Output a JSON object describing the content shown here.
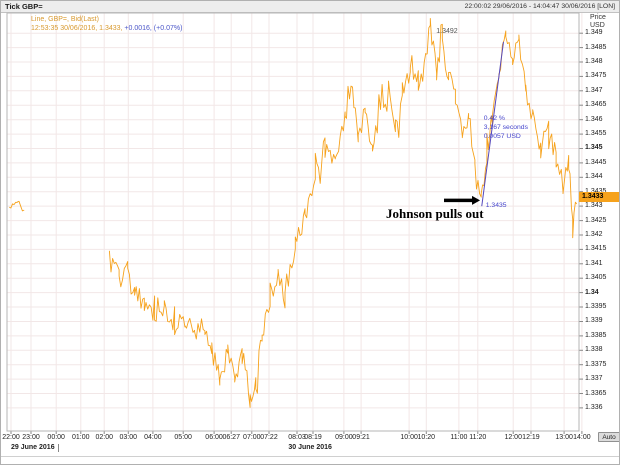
{
  "window": {
    "title": "Tick GBP=",
    "time_range": "22:00:02 29/06/2016 - 14:04:47 30/06/2016 [LON]"
  },
  "legend": {
    "line1": "Line, GBP=, Bid(Last)",
    "line2_prefix": "12:53:35 30/06/2016, 1.3433, ",
    "line2_change": "+0.0016, (+0.07%)"
  },
  "y_axis_title": {
    "line1": "Price",
    "line2": "USD"
  },
  "auto_button": "Auto",
  "chart_data": {
    "type": "line",
    "title": "Tick GBP=",
    "series_name": "GBP= Bid(Last)",
    "x_axis": {
      "ticks": [
        {
          "label": "22:00",
          "pos": 0.007
        },
        {
          "label": "23:00",
          "pos": 0.042
        },
        {
          "label": "00:00",
          "pos": 0.086
        },
        {
          "label": "01:00",
          "pos": 0.129
        },
        {
          "label": "02:00",
          "pos": 0.17
        },
        {
          "label": "03:00",
          "pos": 0.212
        },
        {
          "label": "04:00",
          "pos": 0.255
        },
        {
          "label": "05:00",
          "pos": 0.308
        },
        {
          "label": "06:00",
          "pos": 0.362
        },
        {
          "label": "06:27",
          "pos": 0.392
        },
        {
          "label": "07:00",
          "pos": 0.428
        },
        {
          "label": "07:22",
          "pos": 0.458
        },
        {
          "label": "08:03",
          "pos": 0.507
        },
        {
          "label": "08:19",
          "pos": 0.535
        },
        {
          "label": "09:00",
          "pos": 0.589
        },
        {
          "label": "09:21",
          "pos": 0.619
        },
        {
          "label": "10:00",
          "pos": 0.703
        },
        {
          "label": "10:20",
          "pos": 0.733
        },
        {
          "label": "11:00",
          "pos": 0.79
        },
        {
          "label": "11:20",
          "pos": 0.823
        },
        {
          "label": "12:00",
          "pos": 0.885
        },
        {
          "label": "12:19",
          "pos": 0.916
        },
        {
          "label": "13:00",
          "pos": 0.974
        },
        {
          "label": "14:00",
          "pos": 1.005
        }
      ],
      "date_labels": [
        {
          "label": "29 June 2016",
          "pos": 0.007,
          "align": "left"
        },
        {
          "label": "30 June 2016",
          "pos": 0.53,
          "align": "center"
        }
      ],
      "divider_pos": 0.089
    },
    "y_axis": {
      "title": "Price USD",
      "price_top": 1.3497,
      "price_bottom": 1.3352,
      "labels": [
        "1.349",
        "1.3485",
        "1.348",
        "1.3475",
        "1.347",
        "1.3465",
        "1.346",
        "1.3455",
        "1.345",
        "1.3445",
        "1.344",
        "1.3435",
        "1.343",
        "1.3425",
        "1.342",
        "1.3415",
        "1.341",
        "1.3405",
        "1.34",
        "1.3395",
        "1.339",
        "1.3385",
        "1.338",
        "1.3375",
        "1.337",
        "1.3365",
        "1.336"
      ],
      "bold_labels": [
        "1.345",
        "1.34"
      ],
      "last_price": "1.3433",
      "last_price_value": 1.3433
    },
    "segments": [
      {
        "noise": 0.0001,
        "points": [
          [
            0.004,
            1.3429
          ],
          [
            0.018,
            1.3432
          ],
          [
            0.03,
            1.3428
          ]
        ]
      },
      {
        "noise": 0.00036,
        "points": [
          [
            0.179,
            1.3411
          ],
          [
            0.196,
            1.3407
          ],
          [
            0.211,
            1.3409
          ],
          [
            0.223,
            1.34
          ],
          [
            0.24,
            1.3397
          ],
          [
            0.258,
            1.3391
          ],
          [
            0.275,
            1.3395
          ],
          [
            0.293,
            1.3388
          ],
          [
            0.311,
            1.3391
          ],
          [
            0.328,
            1.3385
          ],
          [
            0.346,
            1.3389
          ],
          [
            0.358,
            1.338
          ],
          [
            0.372,
            1.3371
          ],
          [
            0.386,
            1.3379
          ],
          [
            0.398,
            1.3371
          ],
          [
            0.411,
            1.3379
          ],
          [
            0.425,
            1.3363
          ],
          [
            0.435,
            1.3369
          ],
          [
            0.446,
            1.3386
          ],
          [
            0.46,
            1.3398
          ],
          [
            0.474,
            1.3406
          ],
          [
            0.486,
            1.3398
          ],
          [
            0.504,
            1.3416
          ],
          [
            0.521,
            1.3426
          ],
          [
            0.539,
            1.3441
          ],
          [
            0.556,
            1.3452
          ],
          [
            0.574,
            1.3444
          ],
          [
            0.591,
            1.346
          ],
          [
            0.604,
            1.3471
          ],
          [
            0.614,
            1.3455
          ],
          [
            0.626,
            1.3463
          ],
          [
            0.639,
            1.345
          ],
          [
            0.653,
            1.3463
          ],
          [
            0.667,
            1.3471
          ],
          [
            0.679,
            1.3457
          ],
          [
            0.691,
            1.3468
          ],
          [
            0.705,
            1.3478
          ],
          [
            0.719,
            1.3469
          ],
          [
            0.732,
            1.3481
          ],
          [
            0.74,
            1.3492
          ],
          [
            0.751,
            1.3477
          ],
          [
            0.761,
            1.3487
          ],
          [
            0.772,
            1.3475
          ],
          [
            0.784,
            1.3467
          ],
          [
            0.796,
            1.3454
          ],
          [
            0.807,
            1.3462
          ],
          [
            0.818,
            1.3446
          ],
          [
            0.829,
            1.3435
          ],
          [
            0.839,
            1.3446
          ],
          [
            0.849,
            1.3461
          ],
          [
            0.86,
            1.3476
          ],
          [
            0.872,
            1.349
          ],
          [
            0.884,
            1.3479
          ],
          [
            0.895,
            1.3487
          ],
          [
            0.907,
            1.3469
          ],
          [
            0.919,
            1.3461
          ],
          [
            0.933,
            1.3449
          ],
          [
            0.947,
            1.3458
          ],
          [
            0.96,
            1.3447
          ],
          [
            0.972,
            1.3437
          ],
          [
            0.982,
            1.3445
          ],
          [
            0.989,
            1.3424
          ],
          [
            0.996,
            1.3433
          ]
        ]
      }
    ],
    "annotations": {
      "high_label": {
        "text": "1.3492",
        "pos": 0.74,
        "price": 1.3492
      },
      "event": {
        "text": "Johnson pulls out",
        "arrow_from_pos": 0.764,
        "arrow_to_pos": 0.827,
        "price": 1.3432
      },
      "measure": {
        "from": {
          "pos": 0.83,
          "price": 1.343
        },
        "to": {
          "pos": 0.868,
          "price": 1.3487
        },
        "label": "1.3435",
        "lines": [
          "0.42 %",
          "3,167 seconds",
          "0.0057 USD"
        ]
      }
    },
    "colors": {
      "line": "#f6a21c",
      "grid": "#f2e7e7",
      "axis": "#b5b5b5",
      "tick": "#888888",
      "badge_bg": "#f6a21c",
      "measure": "#5548bb",
      "measure_text": "#4444cc",
      "legend_orange": "#d8992e",
      "legend_blue": "#4a55c8"
    }
  }
}
